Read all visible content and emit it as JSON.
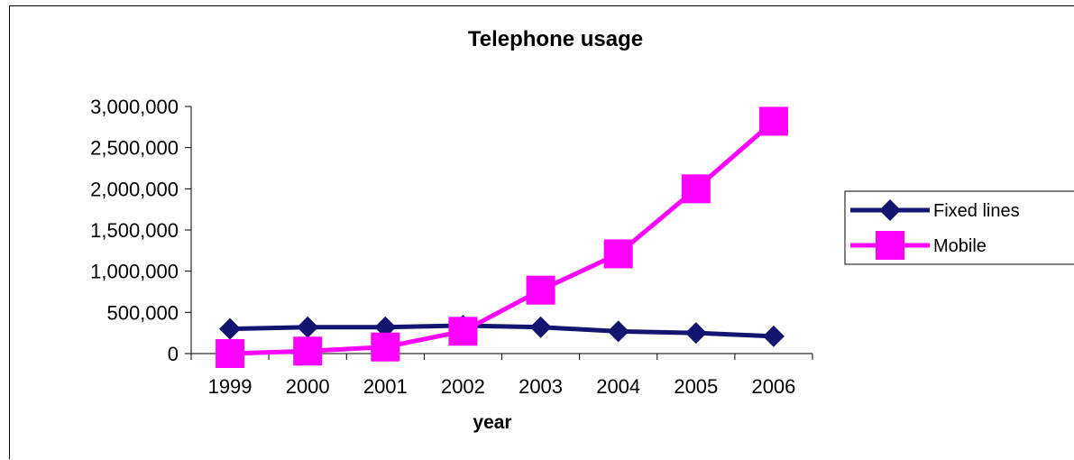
{
  "chart_data": {
    "type": "line",
    "title": "Telephone usage",
    "xlabel": "year",
    "ylabel": "",
    "categories": [
      "1999",
      "2000",
      "2001",
      "2002",
      "2003",
      "2004",
      "2005",
      "2006"
    ],
    "ylim": [
      0,
      3000000
    ],
    "yticks": [
      0,
      500000,
      1000000,
      1500000,
      2000000,
      2500000,
      3000000
    ],
    "ytick_labels": [
      "0",
      "500,000",
      "1,000,000",
      "1,500,000",
      "2,000,000",
      "2,500,000",
      "3,000,000"
    ],
    "grid": false,
    "legend_position": "right",
    "series": [
      {
        "name": "Fixed lines",
        "color": "#141471",
        "marker": "diamond",
        "values": [
          300000,
          320000,
          320000,
          340000,
          320000,
          270000,
          250000,
          210000
        ]
      },
      {
        "name": "Mobile",
        "color": "#ff00ff",
        "marker": "square",
        "values": [
          0,
          30000,
          80000,
          270000,
          770000,
          1210000,
          2000000,
          2820000
        ]
      }
    ]
  }
}
